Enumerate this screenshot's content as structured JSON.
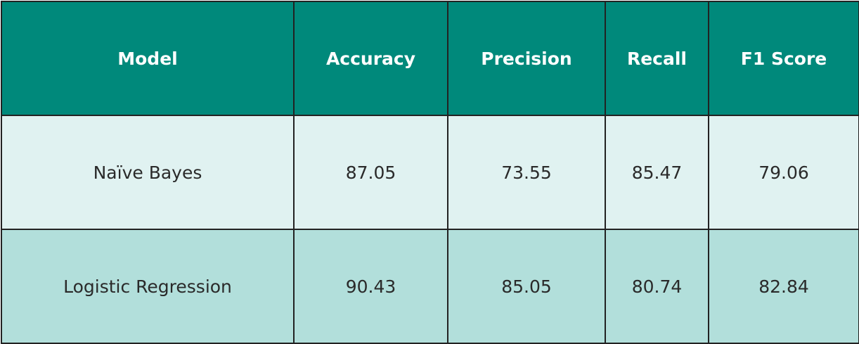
{
  "chart_data": {
    "type": "table",
    "columns": [
      "Model",
      "Accuracy",
      "Precision",
      "Recall",
      "F1 Score"
    ],
    "rows": [
      [
        "Naïve Bayes",
        "87.05",
        "73.55",
        "85.47",
        "79.06"
      ],
      [
        "Logistic Regression",
        "90.43",
        "85.05",
        "80.74",
        "82.84"
      ]
    ]
  },
  "colors": {
    "header_bg": "#00897b",
    "header_text": "#ffffff",
    "row_odd_bg": "#e0f2f1",
    "row_even_bg": "#b2dfdb",
    "border": "#222222",
    "cell_text": "#2a2a2a"
  }
}
